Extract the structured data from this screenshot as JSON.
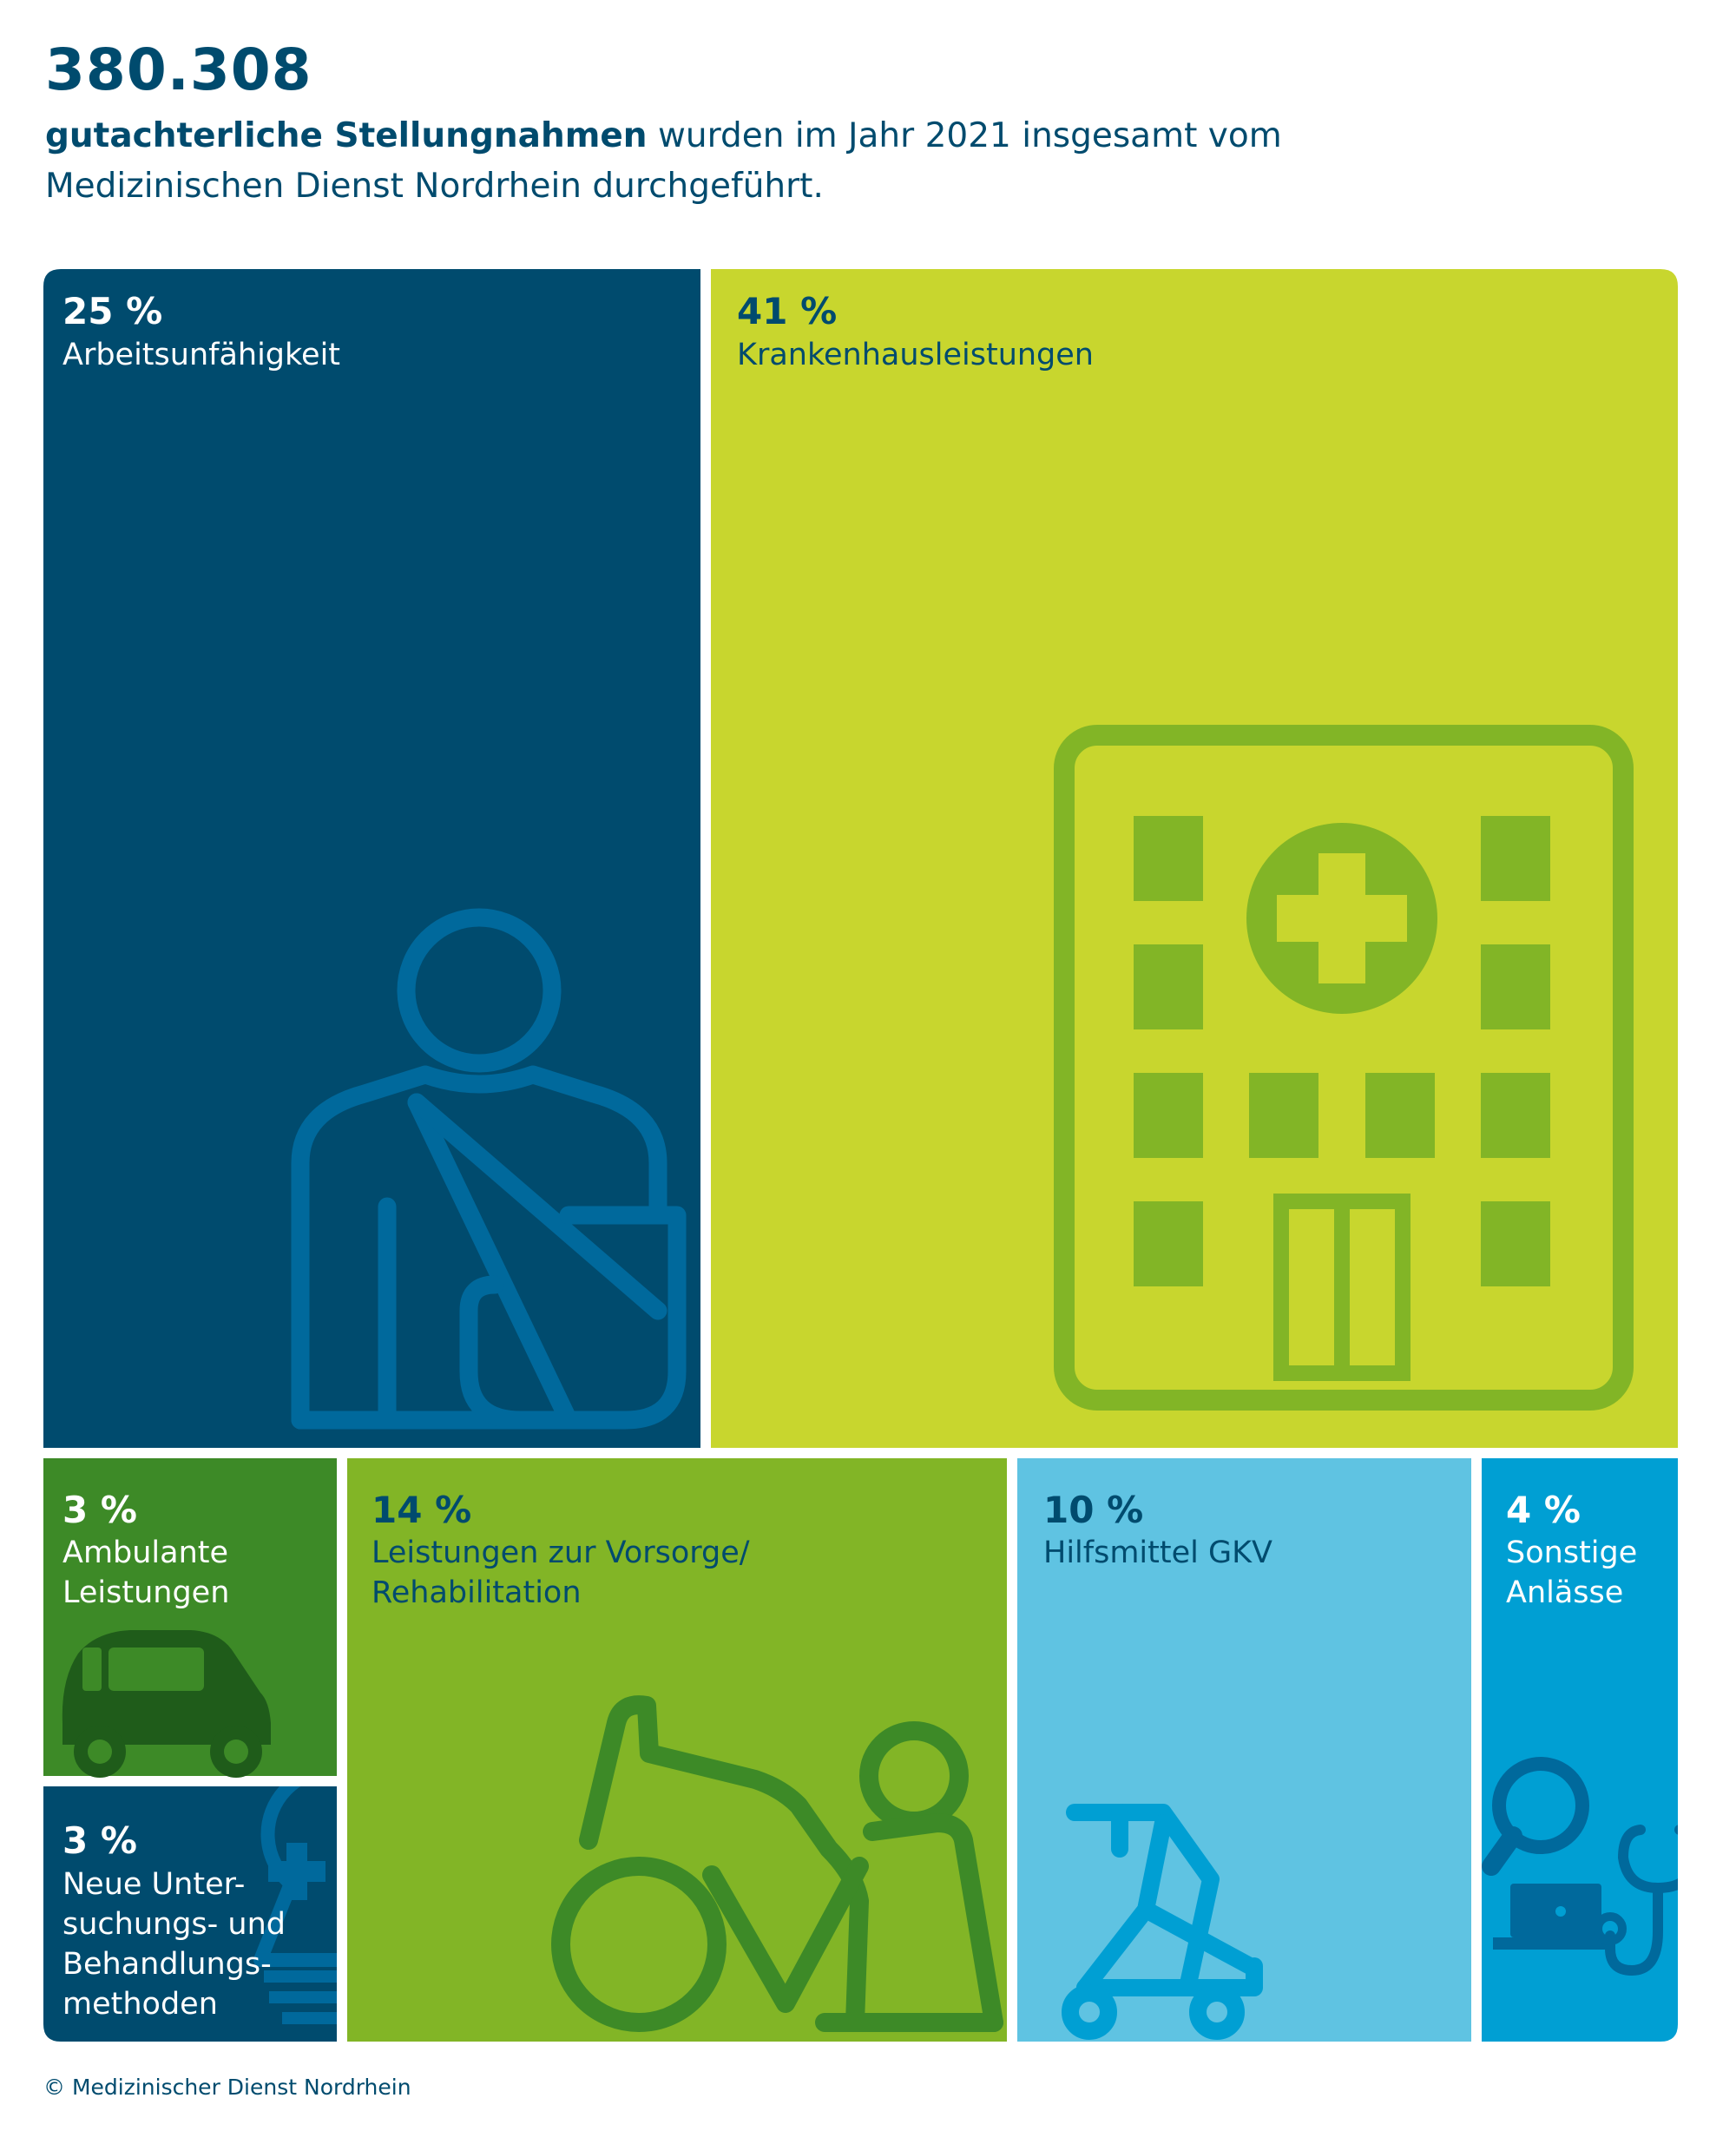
{
  "header": {
    "total": "380.308",
    "subtitle_bold": "gutachterliche Stellungnahmen",
    "subtitle_rest": "wurden im Jahr 2021 insgesamt vom Medizinischen Dienst Nordrhein durchgeführt."
  },
  "chart_data": {
    "type": "treemap",
    "unit": "%",
    "tiles": [
      {
        "key": "arbeitsunfaehigkeit",
        "pct_text": "25 %",
        "label_lines": [
          "Arbeitsunfähigkeit"
        ],
        "value": 25,
        "color": "#004b6e",
        "text_color": "#ffffff",
        "icon": "arm-sling-person-icon",
        "icon_color": "#00699c"
      },
      {
        "key": "krankenhaus",
        "pct_text": "41 %",
        "label_lines": [
          "Krankenhausleistungen"
        ],
        "value": 41,
        "color": "#c8d62e",
        "text_color": "#004b6e",
        "icon": "hospital-building-icon",
        "icon_color": "#82b526"
      },
      {
        "key": "ambulant",
        "pct_text": "3 %",
        "label_lines": [
          "Ambulante",
          "Leistungen"
        ],
        "value": 3,
        "color": "#3d8a27",
        "text_color": "#ffffff",
        "icon": "car-icon",
        "icon_color": "#1f5c1a"
      },
      {
        "key": "neue_methoden",
        "pct_text": "3 %",
        "label_lines": [
          "Neue Unter-",
          "suchungs- und",
          "Behandlungs-",
          "methoden"
        ],
        "value": 3,
        "color": "#004b6e",
        "text_color": "#ffffff",
        "icon": "lightbulb-cross-icon",
        "icon_color": "#00699c"
      },
      {
        "key": "vorsorge",
        "pct_text": "14 %",
        "label_lines": [
          "Leistungen zur Vorsorge/",
          "Rehabilitation"
        ],
        "value": 14,
        "color": "#82b526",
        "text_color": "#004b6e",
        "icon": "wheelchair-exercise-icon",
        "icon_color": "#3d8a27"
      },
      {
        "key": "hilfsmittel",
        "pct_text": "10 %",
        "label_lines": [
          "Hilfsmittel GKV"
        ],
        "value": 10,
        "color": "#5fc3e2",
        "text_color": "#004b6e",
        "icon": "rollator-icon",
        "icon_color": "#009fd3"
      },
      {
        "key": "sonstige",
        "pct_text": "4 %",
        "label_lines": [
          "Sonstige",
          "Anlässe"
        ],
        "value": 4,
        "color": "#009fd3",
        "text_color": "#ffffff",
        "icon": "magnifier-laptop-stethoscope-icon",
        "icon_color": "#00699c"
      }
    ]
  },
  "footer": {
    "copyright": "© Medizinischer Dienst Nordrhein"
  }
}
